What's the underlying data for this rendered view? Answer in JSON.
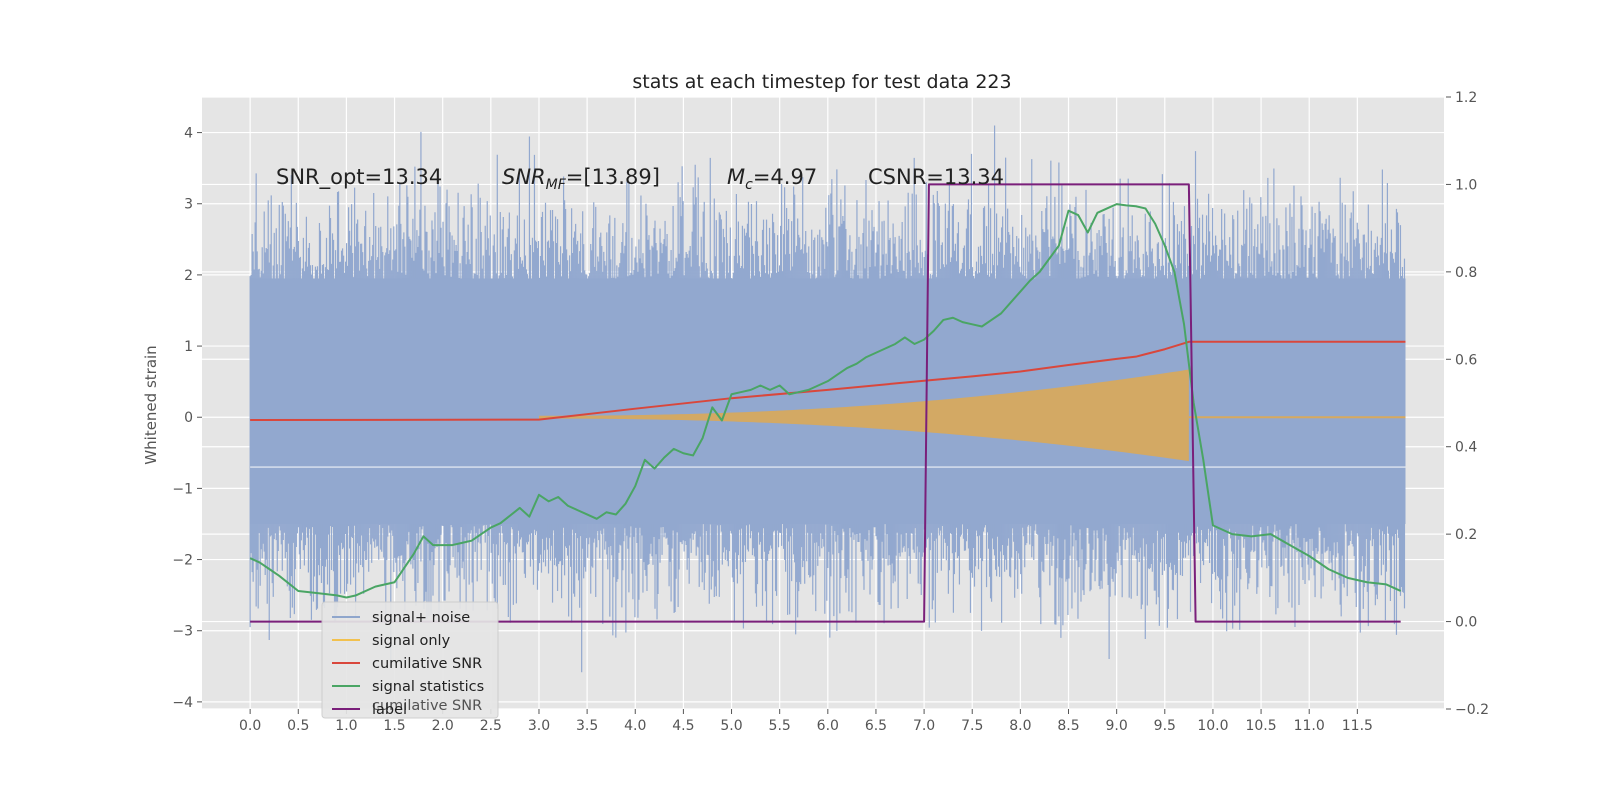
{
  "chart_data": {
    "type": "line",
    "title": "stats at each timestep for test data 223",
    "xlabel": "",
    "ylabel": "Whitened strain",
    "y2label": "",
    "xlim": [
      -0.5,
      12.4
    ],
    "ylim": [
      -4.1,
      4.5
    ],
    "y2lim": [
      -0.2,
      1.2
    ],
    "x_ticks": [
      "0.0",
      "0.5",
      "1.0",
      "1.5",
      "2.0",
      "2.5",
      "3.0",
      "3.5",
      "4.0",
      "4.5",
      "5.0",
      "5.5",
      "6.0",
      "6.5",
      "7.0",
      "7.5",
      "8.0",
      "8.5",
      "9.0",
      "9.5",
      "10.0",
      "10.5",
      "11.0",
      "11.5"
    ],
    "y_ticks": [
      "4",
      "3",
      "2",
      "1",
      "0",
      "−1",
      "−2",
      "−3",
      "−4"
    ],
    "y2_ticks": [
      "1.2",
      "1.0",
      "0.8",
      "0.6",
      "0.4",
      "0.2",
      "0.0",
      "−0.2"
    ],
    "grid": true,
    "legend_position": "lower-left",
    "annotations": {
      "snr_opt": "SNR_opt=13.34",
      "snr_mf_prefix": "SNR",
      "snr_mf_sub": "MF",
      "snr_mf_value": "=[13.89]",
      "mc_prefix": "M",
      "mc_sub": "c",
      "mc_value": "=4.97",
      "csnr": "CSNR=13.34"
    },
    "legend": [
      {
        "label": "signal+ noise",
        "color": "#8fa6cc"
      },
      {
        "label": "signal only",
        "color": "#f2c14e"
      },
      {
        "label": "cumilative SNR",
        "color": "#d9473c"
      },
      {
        "label": "signal statistics",
        "color": "#4aa564"
      },
      {
        "label": "label",
        "color": "#7a1f7a"
      }
    ],
    "legend_hidden_text": "cumilative SNR",
    "series": [
      {
        "name": "signal+ noise",
        "axis": "left",
        "style": "noise-band",
        "x_range": [
          0.0,
          12.0
        ],
        "typical_envelope": [
          -1.8,
          2.2
        ],
        "peak_min": -3.6,
        "peak_max": 4.1
      },
      {
        "name": "signal only",
        "axis": "left",
        "style": "chirp-envelope",
        "x_range": [
          3.0,
          9.75
        ],
        "amplitude_at_end": 0.65
      },
      {
        "name": "cumilative SNR",
        "axis": "right",
        "x": [
          0.0,
          3.0,
          4.0,
          5.0,
          6.0,
          7.0,
          7.5,
          8.0,
          8.5,
          9.0,
          9.2,
          9.5,
          9.75,
          12.0
        ],
        "y": [
          0.461,
          0.462,
          0.487,
          0.511,
          0.53,
          0.551,
          0.561,
          0.572,
          0.587,
          0.601,
          0.606,
          0.623,
          0.64,
          0.64
        ]
      },
      {
        "name": "signal statistics",
        "axis": "right",
        "x": [
          0.0,
          0.1,
          0.2,
          0.3,
          0.5,
          0.7,
          0.9,
          1.0,
          1.1,
          1.3,
          1.5,
          1.7,
          1.8,
          1.9,
          2.1,
          2.2,
          2.3,
          2.5,
          2.6,
          2.8,
          2.9,
          3.0,
          3.1,
          3.2,
          3.3,
          3.4,
          3.5,
          3.6,
          3.7,
          3.8,
          3.9,
          4.0,
          4.1,
          4.2,
          4.3,
          4.4,
          4.5,
          4.6,
          4.7,
          4.8,
          4.9,
          5.0,
          5.1,
          5.2,
          5.3,
          5.4,
          5.5,
          5.6,
          5.7,
          5.8,
          5.9,
          6.0,
          6.1,
          6.2,
          6.3,
          6.4,
          6.5,
          6.6,
          6.7,
          6.8,
          6.9,
          7.0,
          7.1,
          7.2,
          7.3,
          7.4,
          7.5,
          7.6,
          7.7,
          7.8,
          7.9,
          8.0,
          8.1,
          8.2,
          8.3,
          8.4,
          8.5,
          8.6,
          8.7,
          8.8,
          8.9,
          9.0,
          9.1,
          9.2,
          9.3,
          9.4,
          9.5,
          9.6,
          9.7,
          9.8,
          9.9,
          10.0,
          10.2,
          10.4,
          10.6,
          10.8,
          11.0,
          11.2,
          11.4,
          11.6,
          11.8,
          11.95
        ],
        "y": [
          0.145,
          0.135,
          0.12,
          0.105,
          0.07,
          0.065,
          0.06,
          0.055,
          0.06,
          0.08,
          0.09,
          0.155,
          0.195,
          0.175,
          0.175,
          0.18,
          0.185,
          0.215,
          0.225,
          0.26,
          0.24,
          0.29,
          0.275,
          0.285,
          0.265,
          0.255,
          0.245,
          0.235,
          0.25,
          0.245,
          0.27,
          0.31,
          0.37,
          0.35,
          0.375,
          0.395,
          0.385,
          0.38,
          0.42,
          0.49,
          0.46,
          0.52,
          0.525,
          0.53,
          0.54,
          0.53,
          0.54,
          0.52,
          0.525,
          0.53,
          0.54,
          0.55,
          0.565,
          0.58,
          0.59,
          0.605,
          0.615,
          0.625,
          0.635,
          0.65,
          0.635,
          0.645,
          0.665,
          0.69,
          0.695,
          0.685,
          0.68,
          0.675,
          0.69,
          0.705,
          0.73,
          0.755,
          0.78,
          0.8,
          0.83,
          0.86,
          0.94,
          0.93,
          0.89,
          0.935,
          0.945,
          0.955,
          0.952,
          0.95,
          0.945,
          0.91,
          0.86,
          0.8,
          0.68,
          0.5,
          0.37,
          0.22,
          0.2,
          0.195,
          0.2,
          0.175,
          0.15,
          0.12,
          0.1,
          0.09,
          0.085,
          0.07
        ]
      },
      {
        "name": "label",
        "axis": "right",
        "x": [
          0.0,
          7.0,
          7.05,
          9.75,
          9.82,
          11.95
        ],
        "y": [
          0.0,
          0.0,
          1.0,
          1.0,
          0.0,
          0.0
        ]
      }
    ]
  }
}
